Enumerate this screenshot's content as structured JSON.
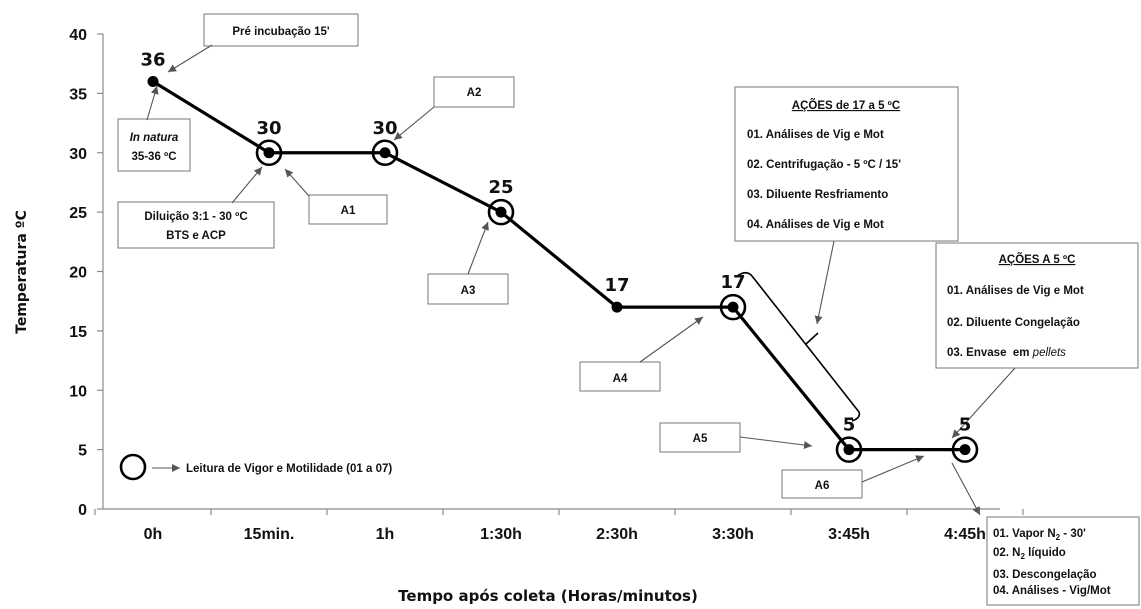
{
  "chart_data": {
    "type": "line",
    "xlabel": "Tempo após coleta (Horas/minutos)",
    "ylabel": "Temperatura ºC",
    "categories": [
      "0h",
      "15min.",
      "1h",
      "1:30h",
      "2:30h",
      "3:30h",
      "3:45h",
      "4:45h"
    ],
    "y_ticks": [
      "0",
      "5",
      "10",
      "15",
      "20",
      "25",
      "30",
      "35",
      "40"
    ],
    "ylim": [
      0,
      40
    ],
    "series": [
      {
        "values": [
          36,
          30,
          30,
          25,
          17,
          17,
          5,
          5
        ],
        "value_labels": [
          "36",
          "30",
          "30",
          "25",
          "17",
          "17",
          "5",
          "5"
        ],
        "ringed": [
          false,
          true,
          true,
          true,
          false,
          true,
          true,
          true
        ]
      }
    ],
    "grid": false,
    "annotations": {
      "pre_incubacao": "Pré incubação  15'",
      "in_natura_line1": "In natura",
      "in_natura_line2": "35-36 ºC",
      "diluicao_line1": "Diluição 3:1  - 30 ºC",
      "diluicao_line2": "BTS e ACP",
      "a1": "A1",
      "a2": "A2",
      "a3": "A3",
      "a4": "A4",
      "a5": "A5",
      "a6": "A6",
      "acoes_17_5": {
        "title": "AÇÕES  de 17  a  5 ºC",
        "items": [
          "01. Análises  de Vig e Mot",
          "02. Centrifugação   - 5 ºC / 15'",
          "03. Diluente  Resfriamento",
          "04. Análises  de Vig e Mot"
        ]
      },
      "acoes_5": {
        "title": "AÇÕES  A 5 ºC",
        "items": [
          "01. Análises  de Vig e Mot",
          "02. Diluente  Congelação",
          "03. Envase  em "
        ],
        "item3_italic": "pellets"
      },
      "final_box": {
        "line1_a": "01. Vapor N",
        "line1_sub": "2",
        "line1_b": " - 30'",
        "line2_a": "02. N",
        "line2_sub": "2",
        "line2_b": " líquido",
        "line3": "03. Descongelação",
        "line4": "04. Análises   - Vig/Mot"
      },
      "legend_text": "Leitura de Vigor e Motilidade (01 a 07)"
    }
  }
}
